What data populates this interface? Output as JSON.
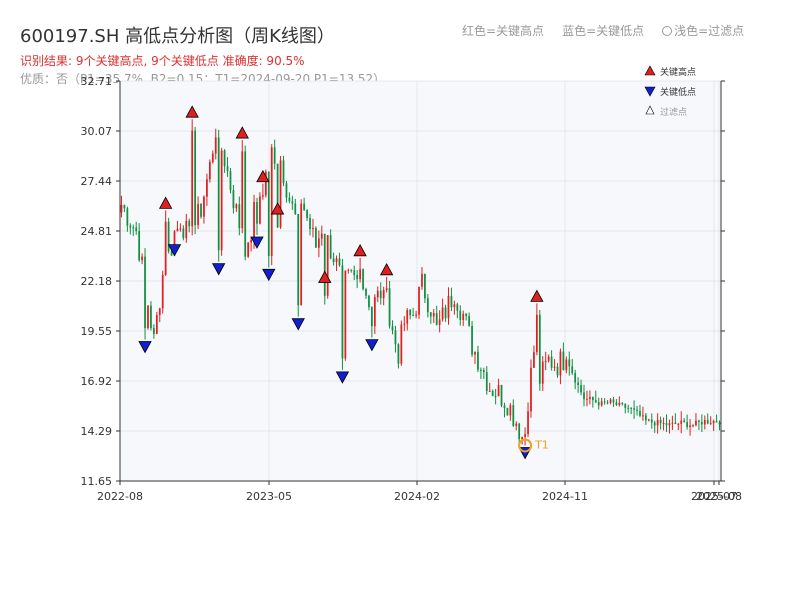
{
  "title": "600197.SH 高低点分析图（周K线图）",
  "subtitle_result": "识别结果: 9个关键高点, 9个关键低点   准确度: 90.5%",
  "subtitle_quality": "优质：否（P1=35.7%, B2=0.15；T1=2024-09-20 P1=13.52）",
  "top_legend": {
    "red": "红色=关键高点",
    "blue": "蓝色=关键低点",
    "light": "浅色=过滤点"
  },
  "colors": {
    "up": "#e02020",
    "down": "#109040",
    "high_marker": "#e02020",
    "low_marker": "#1020d0",
    "t1_ring": "#f0a020",
    "plot_bg": "#f6f8fb",
    "grid": "#dde2ea"
  },
  "chart_data": {
    "type": "candlestick",
    "x_ticks": [
      "2022-08",
      "2023-05",
      "2024-02",
      "2024-11",
      "2025-07",
      "2025-08"
    ],
    "y_ticks": [
      "32.71",
      "30.07",
      "27.44",
      "24.81",
      "22.18",
      "19.55",
      "16.92",
      "14.29",
      "11.65"
    ],
    "ylim": [
      11.65,
      32.71
    ],
    "x_range": [
      "2022-08",
      "2025-08"
    ],
    "grid": true,
    "legend_position": "top-right",
    "legend": [
      "关键高点",
      "关键低点",
      "过滤点"
    ],
    "anchors": [
      {
        "i": 0,
        "p": 26.2
      },
      {
        "i": 5,
        "p": 24.8
      },
      {
        "i": 8,
        "p": 22.0
      },
      {
        "i": 11,
        "p": 19.0
      },
      {
        "i": 14,
        "p": 22.5
      },
      {
        "i": 17,
        "p": 24.0
      },
      {
        "i": 20,
        "p": 25.4
      },
      {
        "i": 23,
        "p": 24.4
      },
      {
        "i": 27,
        "p": 26.0
      },
      {
        "i": 30,
        "p": 28.2
      },
      {
        "i": 32,
        "p": 30.2
      },
      {
        "i": 35,
        "p": 28.6
      },
      {
        "i": 38,
        "p": 26.5
      },
      {
        "i": 41,
        "p": 24.5
      },
      {
        "i": 43,
        "p": 23.6
      },
      {
        "i": 45,
        "p": 25.8
      },
      {
        "i": 48,
        "p": 27.6
      },
      {
        "i": 51,
        "p": 29.0
      },
      {
        "i": 54,
        "p": 28.6
      },
      {
        "i": 57,
        "p": 26.5
      },
      {
        "i": 60,
        "p": 25.0
      },
      {
        "i": 61,
        "p": 26.5
      },
      {
        "i": 64,
        "p": 25.0
      },
      {
        "i": 66,
        "p": 24.0
      },
      {
        "i": 68,
        "p": 25.0
      },
      {
        "i": 72,
        "p": 23.5
      },
      {
        "i": 75,
        "p": 22.0
      },
      {
        "i": 78,
        "p": 22.4
      },
      {
        "i": 82,
        "p": 22.0
      },
      {
        "i": 85,
        "p": 20.8
      },
      {
        "i": 88,
        "p": 21.6
      },
      {
        "i": 91,
        "p": 20.0
      },
      {
        "i": 94,
        "p": 18.4
      },
      {
        "i": 96,
        "p": 20.0
      },
      {
        "i": 99,
        "p": 20.4
      },
      {
        "i": 102,
        "p": 22.0
      },
      {
        "i": 105,
        "p": 20.8
      },
      {
        "i": 107,
        "p": 19.6
      },
      {
        "i": 110,
        "p": 20.6
      },
      {
        "i": 113,
        "p": 21.6
      },
      {
        "i": 116,
        "p": 20.4
      },
      {
        "i": 119,
        "p": 18.8
      },
      {
        "i": 122,
        "p": 17.8
      },
      {
        "i": 125,
        "p": 16.6
      },
      {
        "i": 128,
        "p": 16.3
      },
      {
        "i": 131,
        "p": 15.8
      },
      {
        "i": 134,
        "p": 14.8
      },
      {
        "i": 136,
        "p": 14.0
      },
      {
        "i": 138,
        "p": 16.0
      },
      {
        "i": 140,
        "p": 18.5
      },
      {
        "i": 142,
        "p": 17.0
      },
      {
        "i": 145,
        "p": 18.0
      },
      {
        "i": 148,
        "p": 17.8
      },
      {
        "i": 151,
        "p": 18.2
      },
      {
        "i": 154,
        "p": 17.0
      },
      {
        "i": 157,
        "p": 16.0
      },
      {
        "i": 160,
        "p": 15.9
      },
      {
        "i": 163,
        "p": 15.7
      },
      {
        "i": 166,
        "p": 15.8
      },
      {
        "i": 169,
        "p": 15.6
      },
      {
        "i": 172,
        "p": 15.5
      },
      {
        "i": 175,
        "p": 15.2
      },
      {
        "i": 178,
        "p": 14.8
      },
      {
        "i": 182,
        "p": 14.7
      },
      {
        "i": 186,
        "p": 14.6
      },
      {
        "i": 190,
        "p": 14.7
      },
      {
        "i": 194,
        "p": 14.6
      },
      {
        "i": 198,
        "p": 14.8
      },
      {
        "i": 202,
        "p": 14.8
      }
    ],
    "key_highs": [
      {
        "i": 15,
        "p": 25.9
      },
      {
        "i": 24,
        "p": 30.7
      },
      {
        "i": 41,
        "p": 29.6
      },
      {
        "i": 48,
        "p": 27.3
      },
      {
        "i": 53,
        "p": 25.6
      },
      {
        "i": 69,
        "p": 22.0
      },
      {
        "i": 81,
        "p": 23.4
      },
      {
        "i": 90,
        "p": 22.4
      },
      {
        "i": 141,
        "p": 21.0
      }
    ],
    "key_lows": [
      {
        "i": 8,
        "p": 19.1
      },
      {
        "i": 18,
        "p": 24.2
      },
      {
        "i": 33,
        "p": 23.2
      },
      {
        "i": 46,
        "p": 24.6
      },
      {
        "i": 50,
        "p": 22.9
      },
      {
        "i": 60,
        "p": 20.3
      },
      {
        "i": 75,
        "p": 17.5
      },
      {
        "i": 85,
        "p": 19.2
      },
      {
        "i": 137,
        "p": 13.52
      }
    ],
    "t1": {
      "i": 137,
      "p": 13.52,
      "label": "T1"
    }
  }
}
